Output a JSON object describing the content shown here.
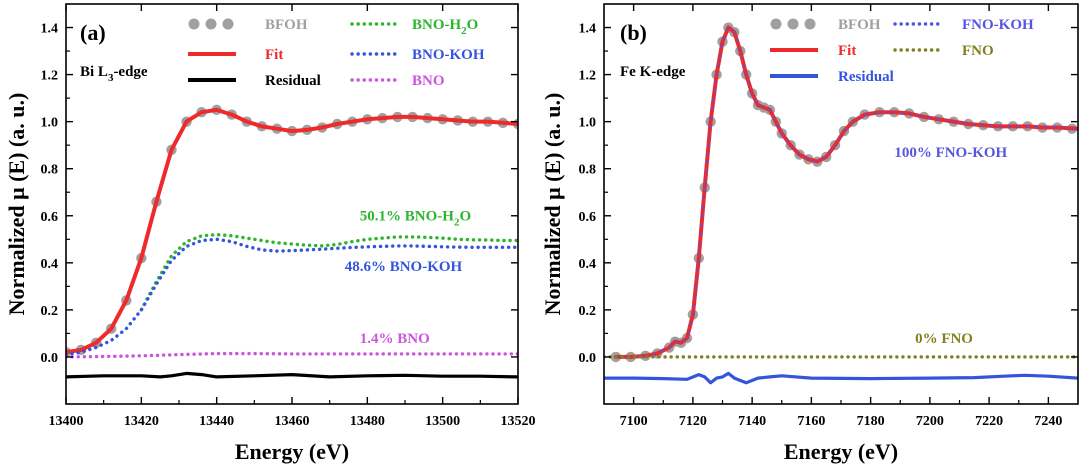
{
  "chart_data": [
    {
      "type": "line",
      "panel_label": "(a)",
      "edge_label": {
        "main": "Bi L",
        "sub": "3",
        "rest": "-edge"
      },
      "xlabel": "Energy (eV)",
      "ylabel": "Normalized μ (E) (a. u.)",
      "xlim": [
        13400,
        13520
      ],
      "ylim": [
        -0.2,
        1.5
      ],
      "xticks": [
        "13400",
        "13420",
        "13440",
        "13460",
        "13480",
        "13500",
        "13520"
      ],
      "yticks": [
        "0.0",
        "0.2",
        "0.4",
        "0.6",
        "0.8",
        "1.0",
        "1.2",
        "1.4"
      ],
      "legend": [
        {
          "label": "BFOH",
          "style": "dots",
          "color": "#a0a0a0"
        },
        {
          "label": "Fit",
          "style": "line",
          "color": "#ee2a2a"
        },
        {
          "label": "Residual",
          "style": "line",
          "color": "#000000"
        },
        {
          "label": "BNO-H",
          "sub": "2",
          "rest": "O",
          "style": "dotted",
          "color": "#2db52d"
        },
        {
          "label": "BNO-KOH",
          "style": "dotted",
          "color": "#3355dd"
        },
        {
          "label": "BNO",
          "style": "dotted",
          "color": "#cc55dd"
        }
      ],
      "annotations": [
        {
          "text": "50.1% BNO-H",
          "sub": "2",
          "rest": "O",
          "color": "#2db52d",
          "x": 13478,
          "y": 0.58
        },
        {
          "text": "48.6% BNO-KOH",
          "sub": "",
          "rest": "",
          "color": "#3355dd",
          "x": 13474,
          "y": 0.365
        },
        {
          "text": "1.4% BNO",
          "sub": "",
          "rest": "",
          "color": "#cc55dd",
          "x": 13478,
          "y": 0.06
        }
      ],
      "series": [
        {
          "name": "BFOH",
          "style": "dots",
          "color": "#a0a0a0",
          "x": [
            13400,
            13404,
            13408,
            13412,
            13416,
            13420,
            13424,
            13428,
            13432,
            13436,
            13440,
            13444,
            13448,
            13452,
            13456,
            13460,
            13464,
            13468,
            13472,
            13476,
            13480,
            13484,
            13488,
            13492,
            13496,
            13500,
            13504,
            13508,
            13512,
            13516,
            13520
          ],
          "y": [
            0.02,
            0.03,
            0.06,
            0.12,
            0.24,
            0.42,
            0.66,
            0.88,
            1.0,
            1.04,
            1.05,
            1.03,
            1.0,
            0.98,
            0.97,
            0.96,
            0.965,
            0.975,
            0.99,
            1.0,
            1.01,
            1.015,
            1.02,
            1.02,
            1.015,
            1.01,
            1.005,
            1.0,
            1.0,
            0.995,
            0.99
          ]
        },
        {
          "name": "Fit",
          "style": "line",
          "color": "#ee2a2a",
          "x": [
            13400,
            13404,
            13408,
            13412,
            13416,
            13420,
            13424,
            13428,
            13432,
            13436,
            13440,
            13444,
            13448,
            13452,
            13456,
            13460,
            13464,
            13468,
            13472,
            13476,
            13480,
            13484,
            13488,
            13492,
            13496,
            13500,
            13504,
            13508,
            13512,
            13516,
            13520
          ],
          "y": [
            0.02,
            0.03,
            0.06,
            0.12,
            0.24,
            0.42,
            0.66,
            0.88,
            1.0,
            1.04,
            1.05,
            1.03,
            1.0,
            0.98,
            0.97,
            0.96,
            0.965,
            0.975,
            0.99,
            1.0,
            1.01,
            1.015,
            1.02,
            1.02,
            1.015,
            1.01,
            1.005,
            1.0,
            1.0,
            0.995,
            0.99
          ]
        },
        {
          "name": "Residual",
          "style": "line",
          "color": "#000000",
          "x": [
            13400,
            13410,
            13420,
            13425,
            13428,
            13432,
            13436,
            13440,
            13450,
            13460,
            13470,
            13480,
            13490,
            13500,
            13510,
            13520
          ],
          "y": [
            -0.085,
            -0.08,
            -0.08,
            -0.085,
            -0.08,
            -0.07,
            -0.075,
            -0.085,
            -0.08,
            -0.075,
            -0.085,
            -0.08,
            -0.078,
            -0.082,
            -0.082,
            -0.085
          ]
        },
        {
          "name": "BNO-H2O",
          "style": "dotted",
          "color": "#2db52d",
          "x": [
            13420,
            13424,
            13428,
            13432,
            13436,
            13440,
            13444,
            13448,
            13452,
            13456,
            13460,
            13464,
            13468,
            13472,
            13476,
            13480,
            13484,
            13488,
            13492,
            13496,
            13500,
            13504,
            13508,
            13512,
            13516,
            13520
          ],
          "y": [
            0.2,
            0.32,
            0.43,
            0.49,
            0.515,
            0.52,
            0.515,
            0.505,
            0.495,
            0.485,
            0.48,
            0.475,
            0.472,
            0.478,
            0.49,
            0.5,
            0.505,
            0.51,
            0.51,
            0.508,
            0.505,
            0.5,
            0.498,
            0.497,
            0.495,
            0.495
          ]
        },
        {
          "name": "BNO-KOH",
          "style": "dotted",
          "color": "#3355dd",
          "x": [
            13400,
            13404,
            13408,
            13412,
            13416,
            13420,
            13424,
            13428,
            13432,
            13436,
            13440,
            13444,
            13448,
            13452,
            13456,
            13460,
            13464,
            13468,
            13472,
            13476,
            13480,
            13484,
            13488,
            13492,
            13496,
            13500,
            13504,
            13508,
            13512,
            13516,
            13520
          ],
          "y": [
            0.01,
            0.02,
            0.04,
            0.07,
            0.12,
            0.2,
            0.31,
            0.41,
            0.47,
            0.495,
            0.5,
            0.49,
            0.47,
            0.455,
            0.45,
            0.452,
            0.455,
            0.458,
            0.462,
            0.465,
            0.468,
            0.47,
            0.472,
            0.472,
            0.47,
            0.468,
            0.467,
            0.466,
            0.466,
            0.466,
            0.466
          ]
        },
        {
          "name": "BNO",
          "style": "dotted",
          "color": "#cc55dd",
          "x": [
            13400,
            13410,
            13420,
            13430,
            13440,
            13450,
            13460,
            13470,
            13480,
            13490,
            13500,
            13510,
            13520
          ],
          "y": [
            0.0,
            0.002,
            0.005,
            0.01,
            0.014,
            0.014,
            0.013,
            0.013,
            0.013,
            0.013,
            0.013,
            0.013,
            0.013
          ]
        }
      ]
    },
    {
      "type": "line",
      "panel_label": "(b)",
      "edge_label": {
        "main": "Fe K-edge",
        "sub": "",
        "rest": ""
      },
      "xlabel": "Energy (eV)",
      "ylabel": "Normalized μ (E) (a. u.)",
      "xlim": [
        7090,
        7250
      ],
      "ylim": [
        -0.2,
        1.5
      ],
      "xticks": [
        "7100",
        "7120",
        "7140",
        "7160",
        "7180",
        "7200",
        "7220",
        "7240"
      ],
      "yticks": [
        "0.0",
        "0.2",
        "0.4",
        "0.6",
        "0.8",
        "1.0",
        "1.2",
        "1.4"
      ],
      "legend": [
        {
          "label": "BFOH",
          "style": "dots",
          "color": "#a0a0a0"
        },
        {
          "label": "Fit",
          "style": "line",
          "color": "#ee2a2a"
        },
        {
          "label": "Residual",
          "style": "line",
          "color": "#3355dd"
        },
        {
          "label": "FNO-KOH",
          "style": "dotted",
          "color": "#5555dd"
        },
        {
          "label": "FNO",
          "style": "dotted",
          "color": "#808020"
        }
      ],
      "annotations": [
        {
          "text": "100% FNO-KOH",
          "sub": "",
          "rest": "",
          "color": "#5555dd",
          "x": 7188,
          "y": 0.85
        },
        {
          "text": "0% FNO",
          "sub": "",
          "rest": "",
          "color": "#808020",
          "x": 7195,
          "y": 0.06
        }
      ],
      "series": [
        {
          "name": "BFOH",
          "style": "dots",
          "color": "#a0a0a0",
          "x": [
            7094,
            7099,
            7104,
            7108,
            7112,
            7114,
            7116,
            7118,
            7120,
            7122,
            7124,
            7126,
            7128,
            7130,
            7132,
            7134,
            7136,
            7138,
            7140,
            7142,
            7144,
            7146,
            7148,
            7150,
            7153,
            7156,
            7159,
            7162,
            7165,
            7168,
            7171,
            7174,
            7178,
            7183,
            7188,
            7193,
            7198,
            7203,
            7208,
            7213,
            7218,
            7223,
            7228,
            7233,
            7238,
            7243,
            7248
          ],
          "y": [
            0.0,
            0.0,
            0.005,
            0.015,
            0.04,
            0.065,
            0.06,
            0.08,
            0.18,
            0.42,
            0.72,
            1.0,
            1.2,
            1.34,
            1.4,
            1.38,
            1.3,
            1.2,
            1.12,
            1.07,
            1.06,
            1.05,
            1.0,
            0.95,
            0.9,
            0.86,
            0.84,
            0.83,
            0.85,
            0.9,
            0.96,
            1.0,
            1.03,
            1.04,
            1.04,
            1.035,
            1.02,
            1.01,
            1.0,
            0.99,
            0.985,
            0.98,
            0.98,
            0.98,
            0.975,
            0.975,
            0.97
          ]
        },
        {
          "name": "Fit",
          "style": "line",
          "color": "#ee2a2a",
          "x": [
            7094,
            7099,
            7104,
            7108,
            7112,
            7114,
            7116,
            7118,
            7120,
            7122,
            7124,
            7126,
            7128,
            7130,
            7132,
            7134,
            7136,
            7138,
            7140,
            7142,
            7144,
            7146,
            7148,
            7150,
            7153,
            7156,
            7159,
            7162,
            7165,
            7168,
            7171,
            7174,
            7178,
            7183,
            7188,
            7193,
            7198,
            7203,
            7208,
            7213,
            7218,
            7223,
            7228,
            7233,
            7238,
            7243,
            7250
          ],
          "y": [
            0.0,
            0.0,
            0.005,
            0.015,
            0.04,
            0.065,
            0.06,
            0.08,
            0.18,
            0.42,
            0.72,
            1.0,
            1.2,
            1.34,
            1.4,
            1.38,
            1.3,
            1.2,
            1.12,
            1.07,
            1.06,
            1.05,
            1.0,
            0.95,
            0.9,
            0.86,
            0.84,
            0.83,
            0.85,
            0.9,
            0.96,
            1.0,
            1.03,
            1.04,
            1.04,
            1.035,
            1.02,
            1.01,
            1.0,
            0.99,
            0.985,
            0.98,
            0.98,
            0.98,
            0.975,
            0.975,
            0.97
          ]
        },
        {
          "name": "FNO-KOH",
          "style": "dashline",
          "color": "#5555dd",
          "x": [
            7094,
            7099,
            7104,
            7108,
            7112,
            7114,
            7116,
            7118,
            7120,
            7122,
            7124,
            7126,
            7128,
            7130,
            7132,
            7134,
            7136,
            7138,
            7140,
            7142,
            7144,
            7146,
            7148,
            7150,
            7153,
            7156,
            7159,
            7162,
            7165,
            7168,
            7171,
            7174,
            7178,
            7183,
            7188,
            7193,
            7198,
            7203,
            7208,
            7213,
            7218,
            7223,
            7228,
            7233,
            7238,
            7243,
            7250
          ],
          "y": [
            0.0,
            0.0,
            0.005,
            0.015,
            0.04,
            0.065,
            0.06,
            0.08,
            0.18,
            0.42,
            0.72,
            1.0,
            1.2,
            1.34,
            1.4,
            1.38,
            1.3,
            1.2,
            1.12,
            1.07,
            1.06,
            1.05,
            1.0,
            0.95,
            0.9,
            0.86,
            0.84,
            0.83,
            0.85,
            0.9,
            0.96,
            1.0,
            1.03,
            1.04,
            1.04,
            1.035,
            1.02,
            1.01,
            1.0,
            0.99,
            0.985,
            0.98,
            0.98,
            0.98,
            0.975,
            0.975,
            0.97
          ]
        },
        {
          "name": "Residual",
          "style": "line",
          "color": "#3355dd",
          "x": [
            7090,
            7100,
            7110,
            7118,
            7122,
            7124,
            7126,
            7128,
            7130,
            7132,
            7134,
            7136,
            7138,
            7142,
            7146,
            7150,
            7160,
            7180,
            7200,
            7215,
            7225,
            7232,
            7240,
            7250
          ],
          "y": [
            -0.09,
            -0.09,
            -0.092,
            -0.095,
            -0.075,
            -0.085,
            -0.11,
            -0.09,
            -0.085,
            -0.07,
            -0.09,
            -0.1,
            -0.11,
            -0.09,
            -0.085,
            -0.08,
            -0.09,
            -0.092,
            -0.09,
            -0.088,
            -0.082,
            -0.078,
            -0.082,
            -0.09
          ]
        },
        {
          "name": "FNO",
          "style": "dotted",
          "color": "#808020",
          "x": [
            7090,
            7250
          ],
          "y": [
            0.0,
            0.0
          ]
        }
      ]
    }
  ]
}
